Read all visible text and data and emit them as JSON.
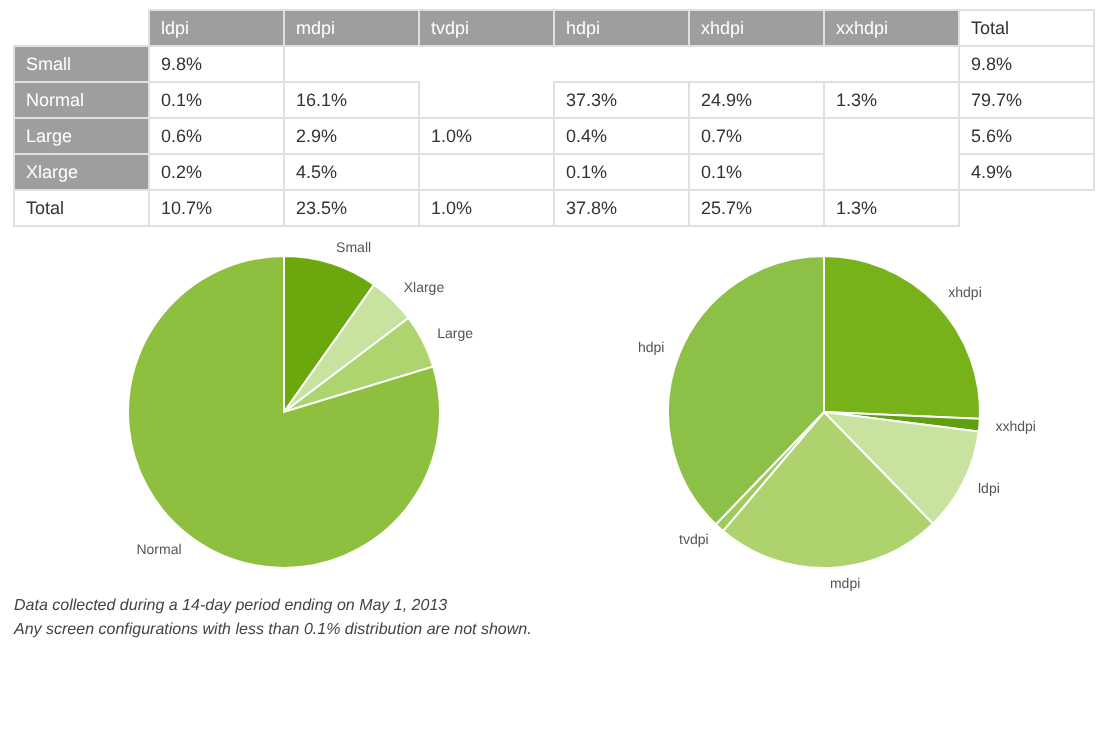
{
  "chart_data": [
    {
      "type": "other",
      "categories": [
        "ldpi",
        "mdpi",
        "tvdpi",
        "hdpi",
        "xhdpi",
        "xxhdpi",
        "Total"
      ],
      "y_categories": [
        "Small",
        "Normal",
        "Large",
        "Xlarge",
        "Total"
      ],
      "cells": [
        [
          "9.8%",
          null,
          null,
          null,
          null,
          null,
          "9.8%"
        ],
        [
          "0.1%",
          "16.1%",
          null,
          "37.3%",
          "24.9%",
          "1.3%",
          "79.7%"
        ],
        [
          "0.6%",
          "2.9%",
          "1.0%",
          "0.4%",
          "0.7%",
          null,
          "5.6%"
        ],
        [
          "0.2%",
          "4.5%",
          null,
          "0.1%",
          "0.1%",
          null,
          "4.9%"
        ],
        [
          "10.7%",
          "23.5%",
          "1.0%",
          "37.8%",
          "25.7%",
          "1.3%",
          null
        ]
      ]
    },
    {
      "type": "pie",
      "categories": [
        "Small",
        "Xlarge",
        "Large",
        "Normal"
      ],
      "values": [
        9.8,
        4.9,
        5.6,
        79.7
      ],
      "colors": [
        "#6aa80e",
        "#c8e2a0",
        "#add46e",
        "#8fbf3f"
      ]
    },
    {
      "type": "pie",
      "categories": [
        "xhdpi",
        "xxhdpi",
        "ldpi",
        "mdpi",
        "tvdpi",
        "hdpi"
      ],
      "values": [
        25.7,
        1.3,
        10.7,
        23.5,
        1.0,
        37.8
      ],
      "colors": [
        "#78b21a",
        "#5f9f10",
        "#c8e2a0",
        "#aed36e",
        "#9fcb5a",
        "#8dc046"
      ],
      "annotations": [
        "Data collected during a 14-day period ending on May 1, 2013",
        "Any screen configurations with less than 0.1% distribution are not shown."
      ]
    }
  ]
}
